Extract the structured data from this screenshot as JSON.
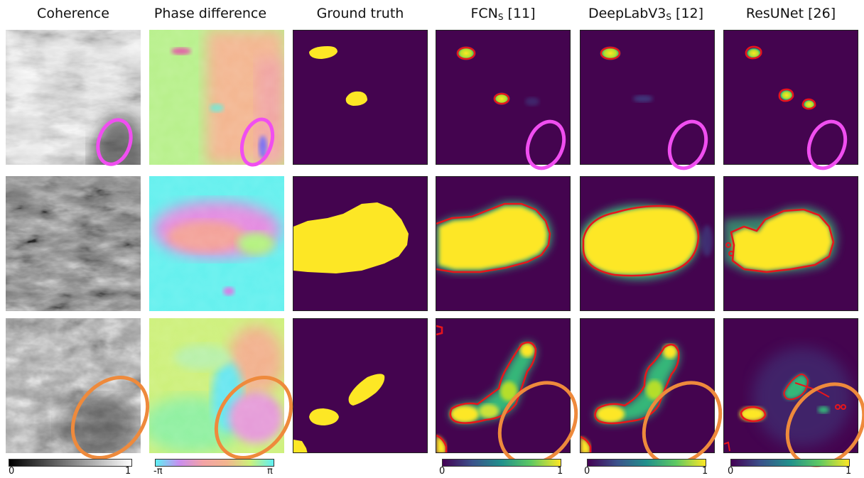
{
  "columns": [
    {
      "label": "Coherence",
      "sub": "",
      "suffix": ""
    },
    {
      "label": "Phase difference",
      "sub": "",
      "suffix": ""
    },
    {
      "label": "Ground truth",
      "sub": "",
      "suffix": ""
    },
    {
      "label": "FCN",
      "sub": "S",
      "suffix": " [11]"
    },
    {
      "label": "DeepLabV3",
      "sub": "S",
      "suffix": " [12]"
    },
    {
      "label": "ResUNet",
      "sub": "",
      "suffix": " [26]"
    }
  ],
  "colorbars": {
    "coherence": {
      "min_label": "0",
      "max_label": "1"
    },
    "phase": {
      "min_label": "-π",
      "max_label": "π"
    },
    "probability": [
      {
        "min_label": "0",
        "max_label": "1"
      },
      {
        "min_label": "0",
        "max_label": "1"
      },
      {
        "min_label": "0",
        "max_label": "1"
      }
    ]
  },
  "colors": {
    "background": "#44044f",
    "mask": "#fde725",
    "contour": "#e8151b",
    "highlight_row1": "#f04ef0",
    "highlight_row3": "#ee8a3c"
  }
}
